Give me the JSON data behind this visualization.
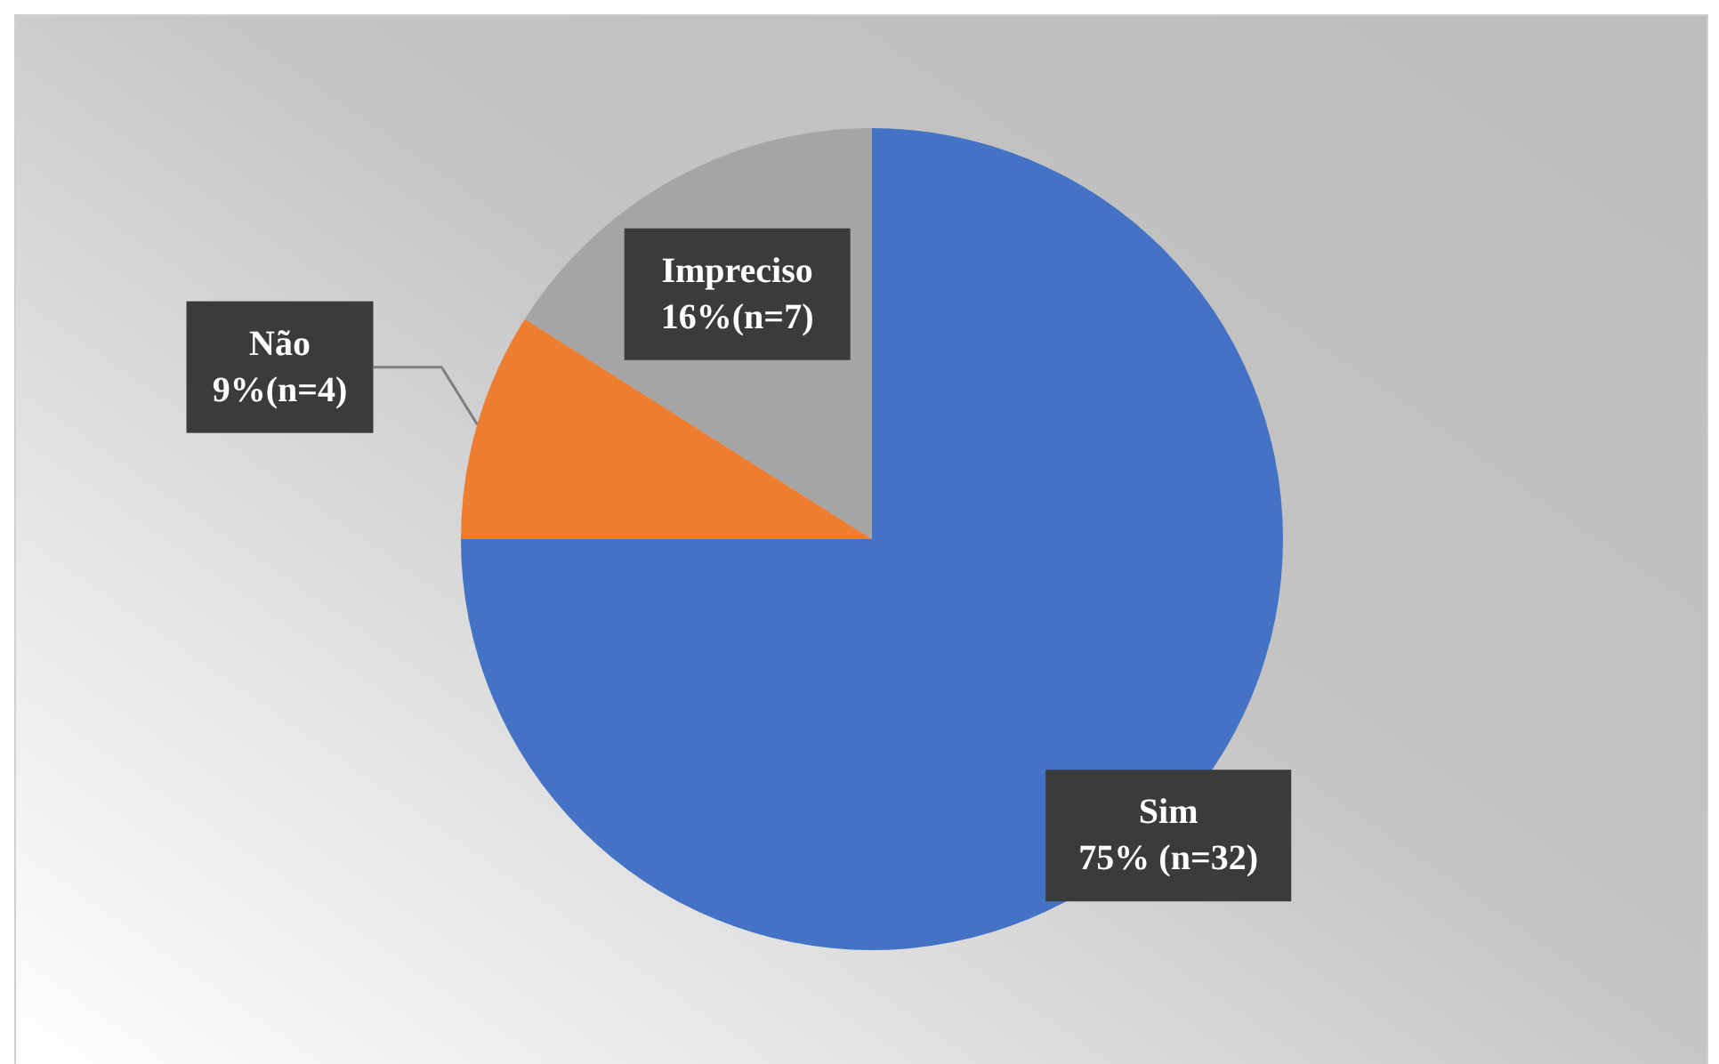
{
  "chart_data": {
    "type": "pie",
    "categories": [
      "Sim",
      "Não",
      "Impreciso"
    ],
    "values": [
      75,
      9,
      16
    ],
    "value_labels": [
      "75% (n=32)",
      "9%(n=4)",
      "16%(n=7)"
    ],
    "colors": [
      "#4472c4",
      "#ed7d31",
      "#a5a5a5"
    ],
    "legend": false
  }
}
